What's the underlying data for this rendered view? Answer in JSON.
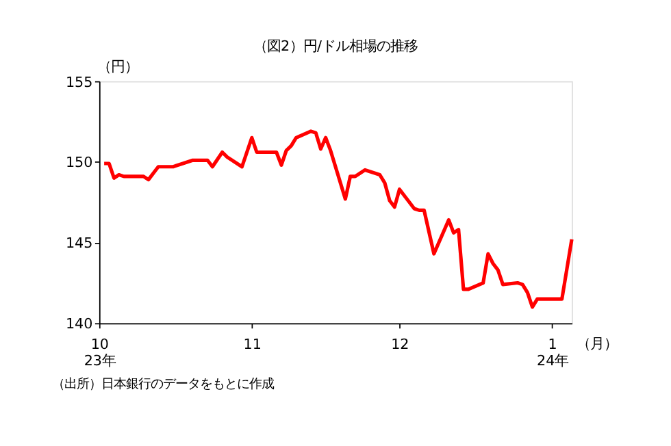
{
  "chart_data": {
    "type": "line",
    "title": "（図2）円/ドル相場の推移",
    "ylabel": "（円）",
    "xlabel": "（月）",
    "x": [
      "2023-10-02",
      "2023-10-03",
      "2023-10-04",
      "2023-10-05",
      "2023-10-06",
      "2023-10-10",
      "2023-10-11",
      "2023-10-13",
      "2023-10-16",
      "2023-10-18",
      "2023-10-20",
      "2023-10-23",
      "2023-10-24",
      "2023-10-26",
      "2023-10-27",
      "2023-10-30",
      "2023-11-01",
      "2023-11-02",
      "2023-11-06",
      "2023-11-07",
      "2023-11-08",
      "2023-11-09",
      "2023-11-10",
      "2023-11-13",
      "2023-11-14",
      "2023-11-15",
      "2023-11-16",
      "2023-11-17",
      "2023-11-20",
      "2023-11-21",
      "2023-11-22",
      "2023-11-24",
      "2023-11-27",
      "2023-11-28",
      "2023-11-29",
      "2023-11-30",
      "2023-12-01",
      "2023-12-04",
      "2023-12-05",
      "2023-12-06",
      "2023-12-08",
      "2023-12-11",
      "2023-12-12",
      "2023-12-13",
      "2023-12-14",
      "2023-12-15",
      "2023-12-18",
      "2023-12-19",
      "2023-12-20",
      "2023-12-21",
      "2023-12-22",
      "2023-12-25",
      "2023-12-26",
      "2023-12-27",
      "2023-12-28",
      "2023-12-29",
      "2024-01-03",
      "2024-01-05"
    ],
    "series": [
      {
        "color": "#ff0000",
        "values": [
          149.9,
          149.9,
          149.0,
          149.2,
          149.1,
          149.1,
          148.9,
          149.7,
          149.7,
          149.9,
          150.1,
          150.1,
          149.7,
          150.6,
          150.3,
          149.7,
          151.5,
          150.6,
          150.6,
          149.8,
          150.7,
          151.0,
          151.5,
          151.9,
          151.8,
          150.8,
          151.5,
          150.7,
          147.7,
          149.1,
          149.1,
          149.5,
          149.2,
          148.7,
          147.6,
          147.2,
          148.3,
          147.1,
          147.0,
          147.0,
          144.3,
          146.4,
          145.6,
          145.8,
          142.1,
          142.1,
          142.5,
          144.3,
          143.7,
          143.3,
          142.4,
          142.5,
          142.4,
          141.9,
          141.0,
          141.5,
          141.5,
          145.2
        ]
      }
    ],
    "ylim": [
      140,
      155
    ],
    "yticks": [
      140,
      145,
      150,
      155
    ],
    "xlim": [
      "2023-10-01",
      "2024-01-05"
    ],
    "xticks": [
      {
        "value": "2023-10-01",
        "label": "10\n23年"
      },
      {
        "value": "2023-11-01",
        "label": "11"
      },
      {
        "value": "2023-12-01",
        "label": "12"
      },
      {
        "value": "2024-01-01",
        "label": "1\n24年"
      }
    ],
    "grid": false,
    "legend": false,
    "marker": "none",
    "line_style": "solid",
    "annotations": [
      "（出所）日本銀行のデータをもとに作成"
    ]
  }
}
